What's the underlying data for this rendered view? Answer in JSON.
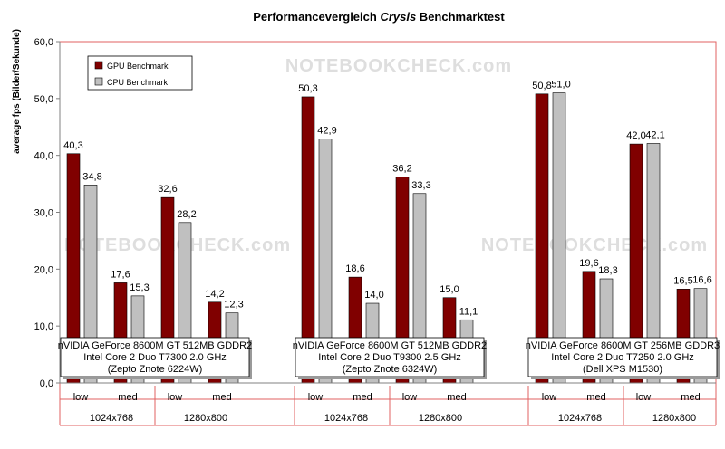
{
  "chart_data": {
    "type": "bar",
    "title_prefix": "Performancevergleich ",
    "title_italic": "Crysis",
    "title_suffix": " Benchmarktest",
    "ylabel": "average fps (Bilder/Sekunde)",
    "ylim": [
      0,
      60
    ],
    "yticks": [
      "0,0",
      "10,0",
      "20,0",
      "30,0",
      "40,0",
      "50,0",
      "60,0"
    ],
    "legend": [
      "GPU Benchmark",
      "CPU Benchmark"
    ],
    "legend_position": "top-left",
    "grid": false,
    "watermark": "NOTEBOOKCHECK.com",
    "colors": {
      "gpu": "#800000",
      "cpu": "#c0c0c0",
      "frame": "#e06060"
    },
    "groups": [
      {
        "system": [
          "nVIDIA GeForce 8600M GT 512MB GDDR2",
          "Intel Core 2 Duo T7300 2.0 GHz",
          "(Zepto Znote 6224W)"
        ],
        "resolutions": [
          {
            "label": "1024x768",
            "settings": [
              "low",
              "med"
            ],
            "gpu": [
              40.3,
              17.6
            ],
            "cpu": [
              34.8,
              15.3
            ],
            "gpu_labels": [
              "40,3",
              "17,6"
            ],
            "cpu_labels": [
              "34,8",
              "15,3"
            ]
          },
          {
            "label": "1280x800",
            "settings": [
              "low",
              "med"
            ],
            "gpu": [
              32.6,
              14.2
            ],
            "cpu": [
              28.2,
              12.3
            ],
            "gpu_labels": [
              "32,6",
              "14,2"
            ],
            "cpu_labels": [
              "28,2",
              "12,3"
            ]
          }
        ]
      },
      {
        "system": [
          "nVIDIA GeForce 8600M GT 512MB GDDR2",
          "Intel Core 2 Duo T9300 2.5 GHz",
          "(Zepto Znote 6324W)"
        ],
        "resolutions": [
          {
            "label": "1024x768",
            "settings": [
              "low",
              "med"
            ],
            "gpu": [
              50.3,
              18.6
            ],
            "cpu": [
              42.9,
              14.0
            ],
            "gpu_labels": [
              "50,3",
              "18,6"
            ],
            "cpu_labels": [
              "42,9",
              "14,0"
            ]
          },
          {
            "label": "1280x800",
            "settings": [
              "low",
              "med"
            ],
            "gpu": [
              36.2,
              15.0
            ],
            "cpu": [
              33.3,
              11.1
            ],
            "gpu_labels": [
              "36,2",
              "15,0"
            ],
            "cpu_labels": [
              "33,3",
              "11,1"
            ]
          }
        ]
      },
      {
        "system": [
          "nVIDIA GeForce 8600M GT 256MB GDDR3",
          "Intel Core 2 Duo T7250 2.0 GHz",
          "(Dell XPS M1530)"
        ],
        "resolutions": [
          {
            "label": "1024x768",
            "settings": [
              "low",
              "med"
            ],
            "gpu": [
              50.8,
              19.6
            ],
            "cpu": [
              51.0,
              18.3
            ],
            "gpu_labels": [
              "50,8",
              "19,6"
            ],
            "cpu_labels": [
              "51,0",
              "18,3"
            ]
          },
          {
            "label": "1280x800",
            "settings": [
              "low",
              "med"
            ],
            "gpu": [
              42.0,
              16.5
            ],
            "cpu": [
              42.1,
              16.6
            ],
            "gpu_labels": [
              "42,0",
              "16,5"
            ],
            "cpu_labels": [
              "42,1",
              "16,6"
            ]
          }
        ]
      }
    ]
  }
}
